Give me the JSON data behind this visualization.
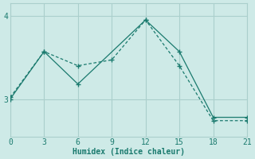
{
  "xlabel": "Humidex (Indice chaleur)",
  "bg_color": "#ceeae7",
  "line_color": "#1a7a6e",
  "grid_color": "#aacfcc",
  "line1_x": [
    0,
    3,
    6,
    12,
    15,
    18,
    21
  ],
  "line1_y": [
    3.0,
    3.57,
    3.18,
    3.95,
    3.57,
    2.78,
    2.78
  ],
  "line2_x": [
    0,
    3,
    6,
    9,
    12,
    15,
    18,
    21
  ],
  "line2_y": [
    3.02,
    3.57,
    3.4,
    3.47,
    3.95,
    3.4,
    2.74,
    2.74
  ],
  "xlim": [
    0,
    21
  ],
  "ylim": [
    2.55,
    4.15
  ],
  "xticks": [
    0,
    3,
    6,
    9,
    12,
    15,
    18,
    21
  ],
  "yticks": [
    3,
    4
  ],
  "figsize": [
    3.2,
    2.0
  ],
  "dpi": 100
}
